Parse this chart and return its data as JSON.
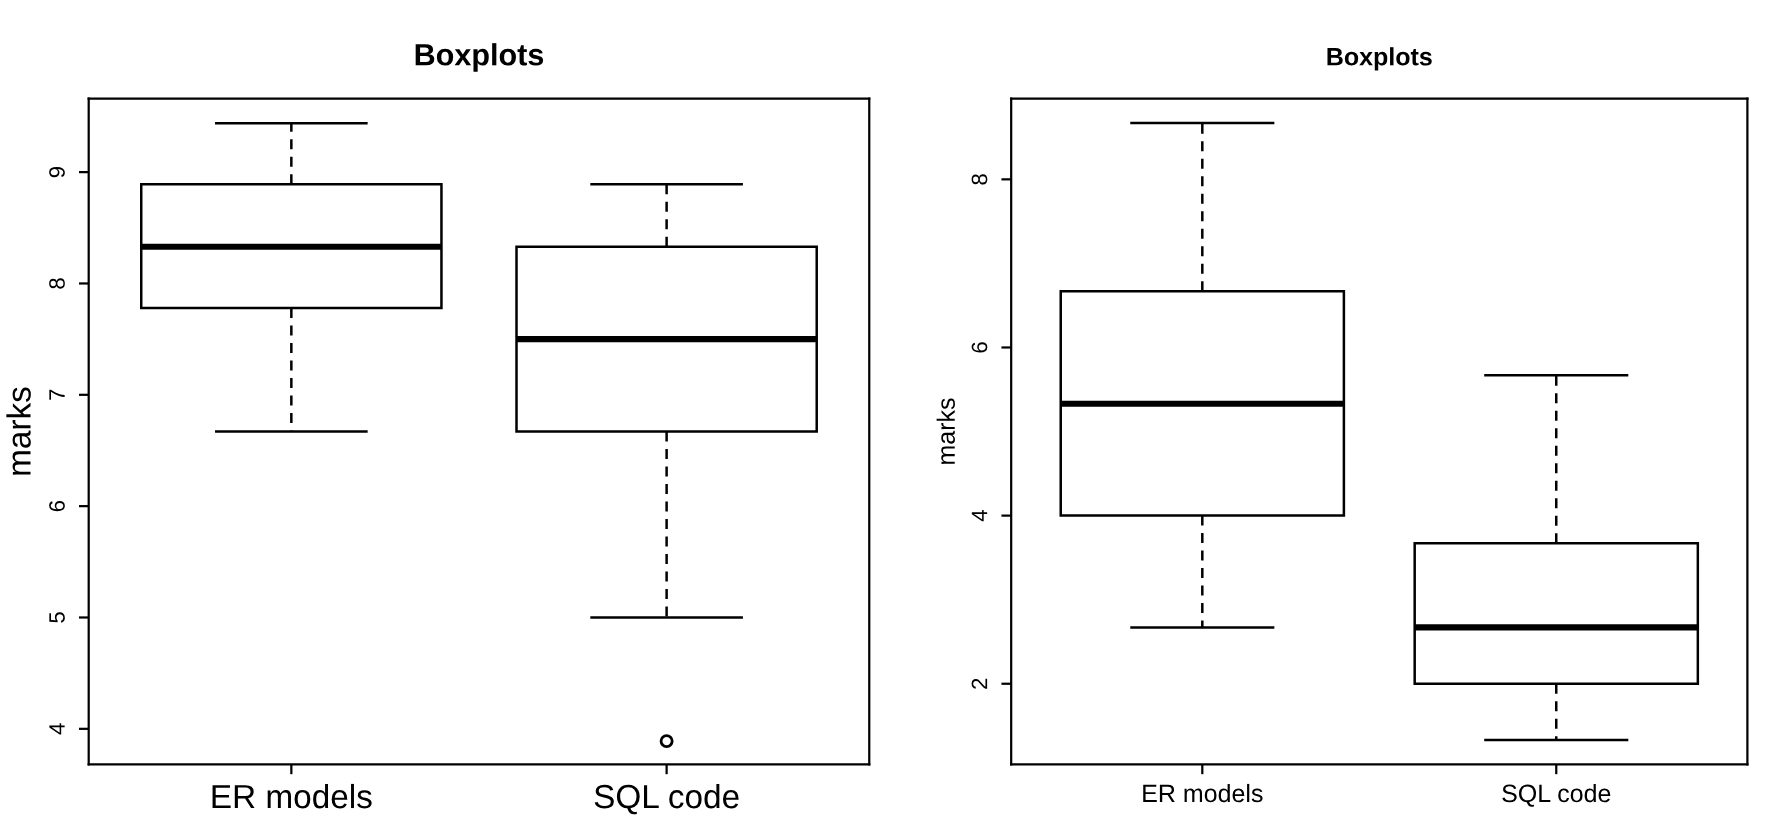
{
  "chart_data": [
    {
      "type": "box",
      "title": "Boxplots",
      "ylabel": "marks",
      "categories": [
        "ER models",
        "SQL code"
      ],
      "ylim": [
        3.68,
        9.66
      ],
      "yticks": [
        4,
        5,
        6,
        7,
        8,
        9
      ],
      "grid": false,
      "legend": false,
      "boxes": [
        {
          "low": 6.67,
          "q1": 7.78,
          "median": 8.33,
          "q3": 8.89,
          "high": 9.44
        },
        {
          "low": 5.0,
          "q1": 6.67,
          "median": 7.5,
          "q3": 8.33,
          "high": 8.89,
          "outliers": [
            3.89
          ]
        }
      ]
    },
    {
      "type": "box",
      "title": "Boxplots",
      "ylabel": "marks",
      "categories": [
        "ER models",
        "SQL code"
      ],
      "ylim": [
        1.04,
        8.96
      ],
      "yticks": [
        2,
        4,
        6,
        8
      ],
      "grid": false,
      "legend": false,
      "boxes": [
        {
          "low": 2.67,
          "q1": 4.0,
          "median": 5.33,
          "q3": 6.67,
          "high": 8.67
        },
        {
          "low": 1.33,
          "q1": 2.0,
          "median": 2.67,
          "q3": 3.67,
          "high": 5.67
        }
      ]
    }
  ]
}
